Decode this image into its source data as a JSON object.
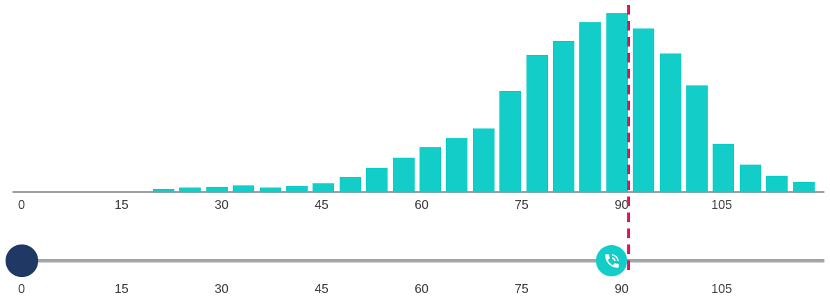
{
  "chart_data": {
    "type": "bar",
    "subtype": "histogram",
    "title": "",
    "xlabel": "",
    "ylabel": "",
    "x_tick_labels": [
      "0",
      "15",
      "30",
      "45",
      "60",
      "75",
      "90",
      "105"
    ],
    "x_tick_values": [
      0,
      15,
      30,
      45,
      60,
      75,
      90,
      105
    ],
    "x_axis_range": [
      0,
      120
    ],
    "grid": "off",
    "legend": "none",
    "bin_start": 20,
    "bin_width": 4,
    "bin_centers": [
      22,
      26,
      30,
      34,
      38,
      42,
      46,
      50,
      54,
      58,
      62,
      66,
      70,
      74,
      78,
      82,
      86,
      90,
      94,
      98,
      102,
      106,
      110,
      114,
      118
    ],
    "values_relative_height": [
      5,
      7,
      8,
      10,
      7,
      9,
      13,
      22,
      35,
      50,
      65,
      78,
      92,
      146,
      198,
      218,
      245,
      258,
      236,
      200,
      154,
      70,
      40,
      24,
      15
    ],
    "bar_color": "#12cdc8",
    "axis_line_color": "#a6a6a6",
    "marker": {
      "x": 91,
      "color": "#e8155c",
      "style": "dashed-vertical"
    }
  },
  "slider": {
    "track_color": "#a6a6a6",
    "tick_labels": [
      "0",
      "15",
      "30",
      "45",
      "60",
      "75",
      "90",
      "105"
    ],
    "tick_values": [
      0,
      15,
      30,
      45,
      60,
      75,
      90,
      105
    ],
    "handles": [
      {
        "id": "start",
        "value": 0,
        "color": "#1f3864",
        "icon": null
      },
      {
        "id": "phone",
        "value": 88.5,
        "color": "#12cdc8",
        "icon": "phone-volume-icon",
        "icon_color": "#ffffff"
      }
    ]
  },
  "colors": {
    "bar_teal": "#12cdc8",
    "marker_crimson": "#e8155c",
    "handle_navy": "#1f3864",
    "line_gray": "#a6a6a6",
    "label_text": "#3d3d3d"
  }
}
